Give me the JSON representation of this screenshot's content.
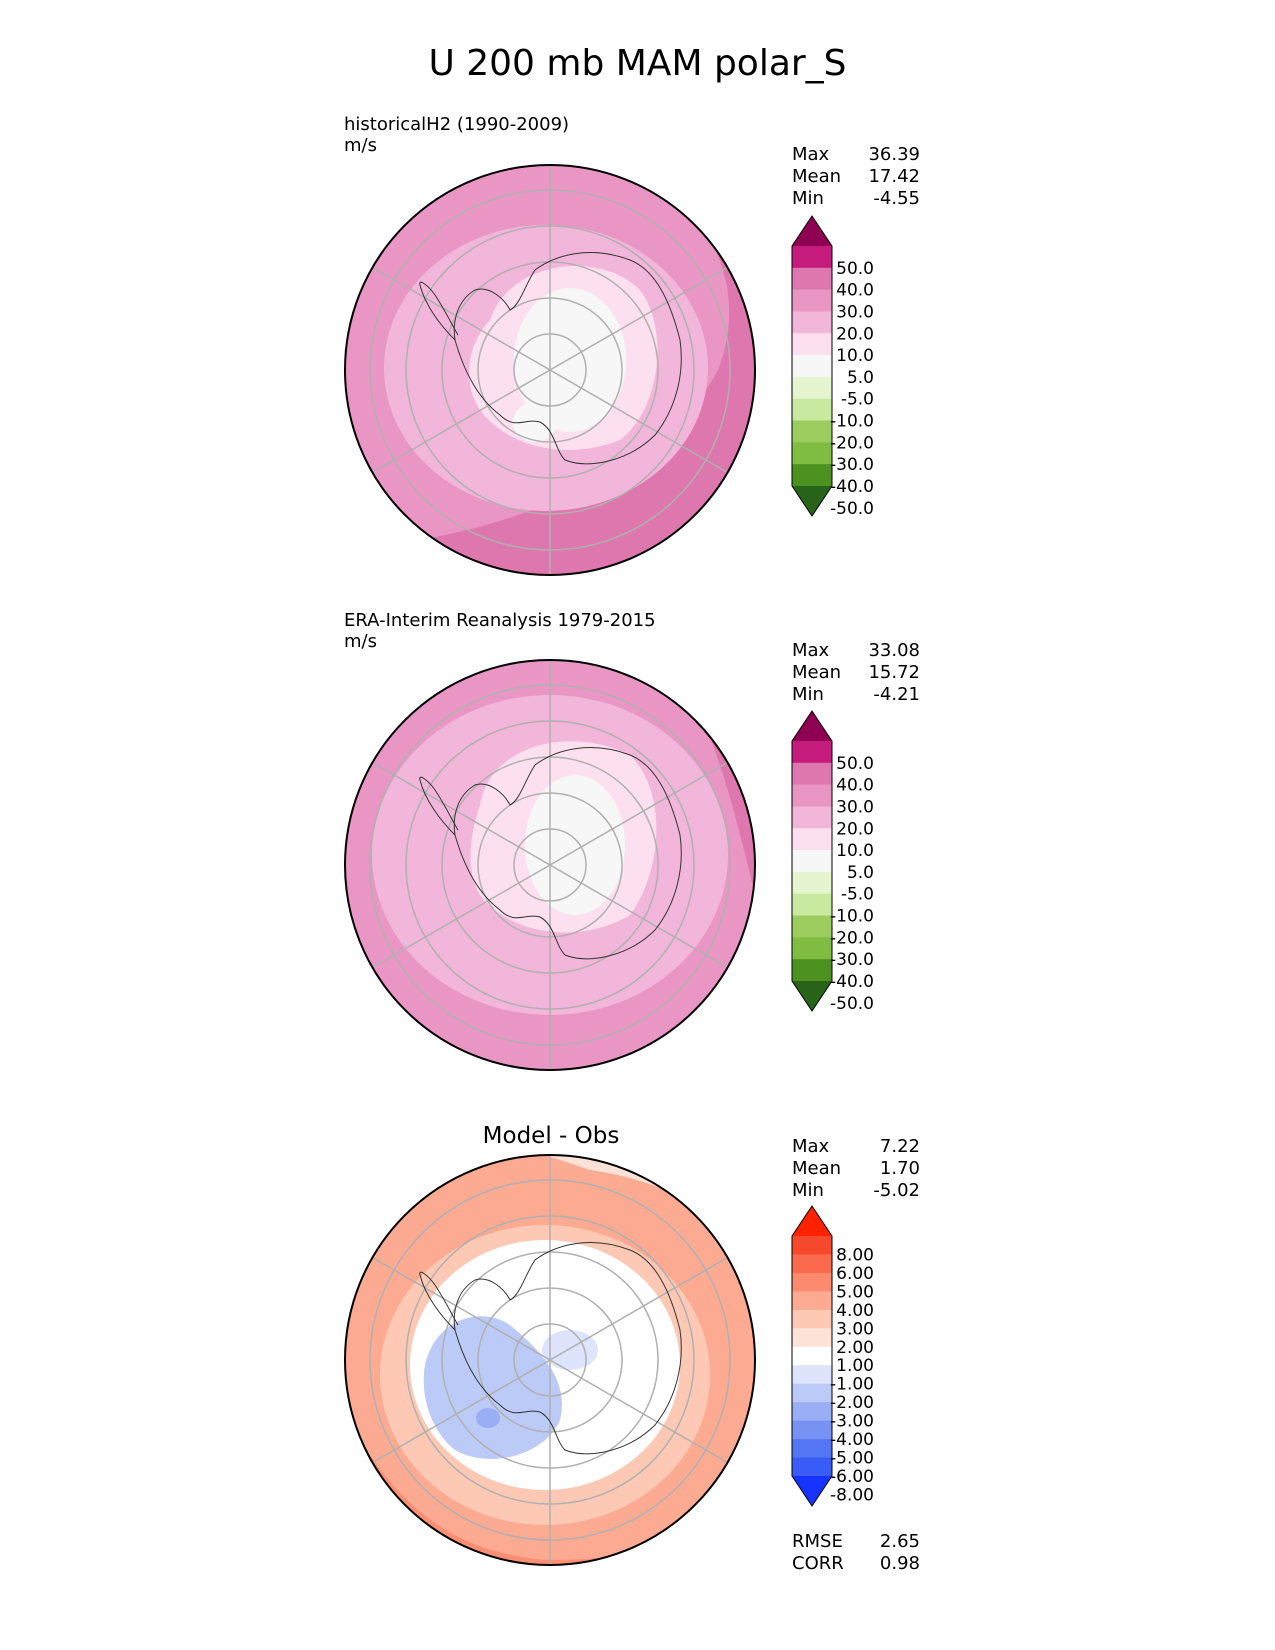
{
  "title": "U 200 mb MAM polar_S",
  "panels": [
    {
      "id": "test",
      "title": "historicalH2 (1990-2009)",
      "units": "m/s",
      "stats": [
        {
          "label": "Max",
          "value": "36.39"
        },
        {
          "label": "Mean",
          "value": "17.42"
        },
        {
          "label": "Min",
          "value": "-4.55"
        }
      ]
    },
    {
      "id": "reference",
      "title": "ERA-Interim Reanalysis 1979-2015",
      "units": "m/s",
      "stats": [
        {
          "label": "Max",
          "value": "33.08"
        },
        {
          "label": "Mean",
          "value": "15.72"
        },
        {
          "label": "Min",
          "value": "-4.21"
        }
      ]
    },
    {
      "id": "difference",
      "title": "Model - Obs",
      "units": "",
      "stats": [
        {
          "label": "Max",
          "value": "7.22"
        },
        {
          "label": "Mean",
          "value": "1.70"
        },
        {
          "label": "Min",
          "value": "-5.02"
        }
      ],
      "extra_stats": [
        {
          "label": "RMSE",
          "value": "2.65"
        },
        {
          "label": "CORR",
          "value": "0.98"
        }
      ]
    }
  ],
  "colorbars": {
    "field": {
      "tick_labels": [
        "50.0",
        "40.0",
        "30.0",
        "20.0",
        "10.0",
        "5.0",
        "-5.0",
        "-10.0",
        "-20.0",
        "-30.0",
        "-40.0",
        "-50.0"
      ],
      "colors_top_to_bottom": [
        "#8e0152",
        "#c51b7d",
        "#de77ae",
        "#e996c4",
        "#f1b6da",
        "#fde0ef",
        "#f7f7f7",
        "#e6f5d0",
        "#c7e9a0",
        "#9ccc5e",
        "#7fbc41",
        "#4d9221",
        "#276419"
      ]
    },
    "difference": {
      "tick_labels": [
        "8.00",
        "6.00",
        "5.00",
        "4.00",
        "3.00",
        "2.00",
        "1.00",
        "-1.00",
        "-2.00",
        "-3.00",
        "-4.00",
        "-5.00",
        "-6.00",
        "-8.00"
      ],
      "colors_top_to_bottom": [
        "#ff2200",
        "#f6482d",
        "#fc6a4e",
        "#fc8a6e",
        "#fcaa92",
        "#fdc8b4",
        "#fde2d8",
        "#ffffff",
        "#dde4fb",
        "#bccaf8",
        "#9aaef6",
        "#7892f4",
        "#5576f4",
        "#3a5cf6",
        "#1633ff"
      ]
    }
  },
  "map": {
    "projection": "south polar stereographic",
    "boundary": "circular",
    "gridlines": true,
    "coastlines": true,
    "contour_colors_hint": {
      "test_outer": "#e996c4",
      "test_edge": "#de77ae",
      "test_mid": "#f1b6da",
      "test_inner": "#fde0ef",
      "test_core": "#f7f7f7",
      "diff_positive_strong": "#f6482d",
      "diff_positive": "#fc8a6e",
      "diff_weak": "#fde2d8",
      "diff_negative": "#bccaf8"
    }
  }
}
